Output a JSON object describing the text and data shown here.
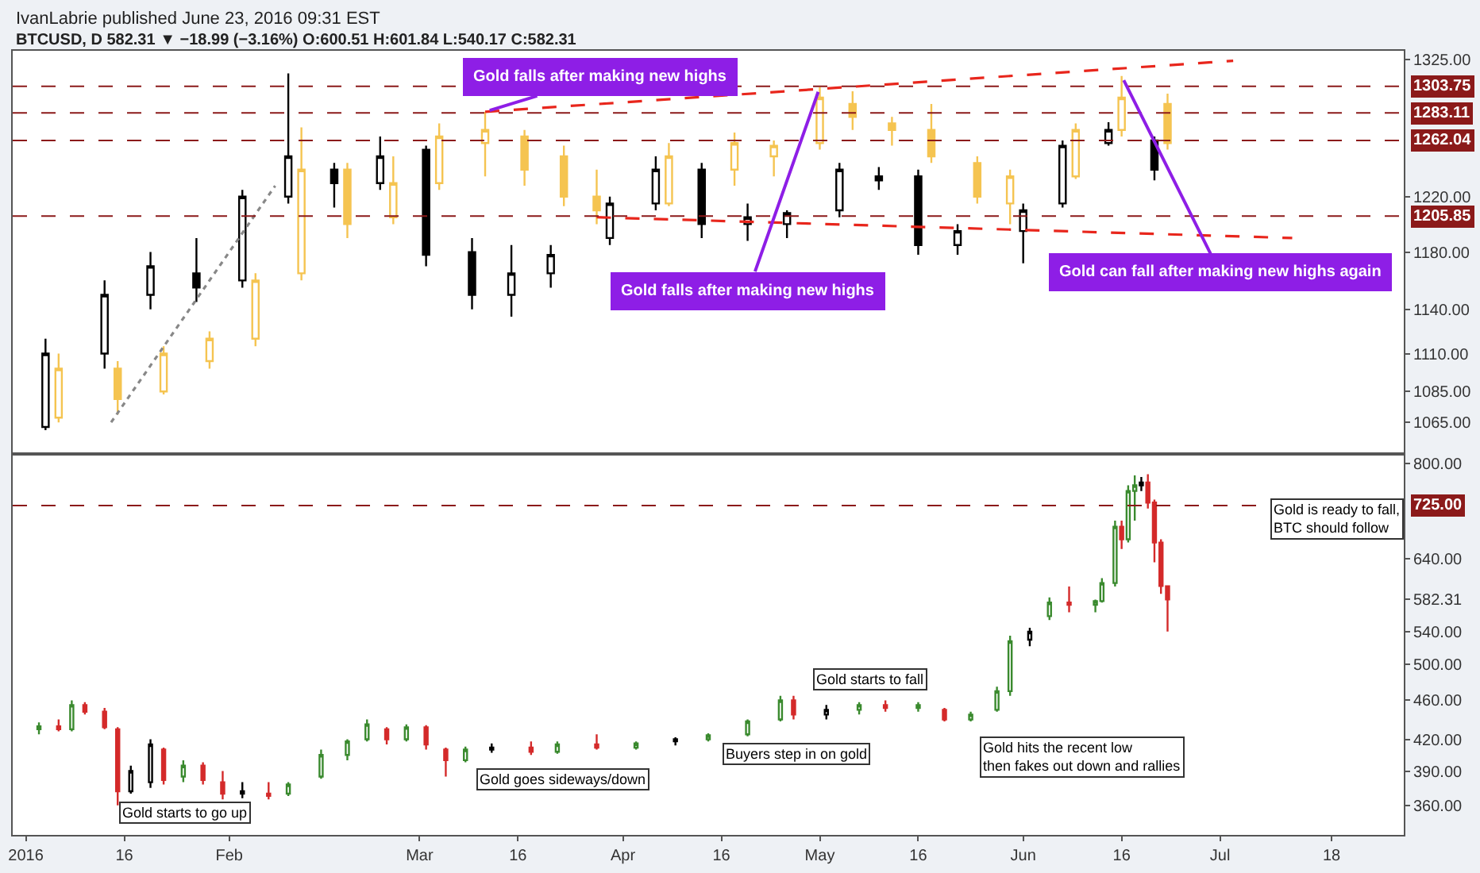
{
  "chart_data": [
    {
      "type": "candlestick",
      "title": "IvanLabrie published June 23, 2016 09:31 EST",
      "subtitle": "BTCUSD, D 582.31 ▼ −18.99 (−3.16%) O:600.51 H:601.84 L:540.17 C:582.31",
      "log": "y",
      "tick_labels": "y",
      "xlim": [
        "2015-12-30",
        "2016-07-29"
      ],
      "ylim": [
        1045,
        1332
      ],
      "yticks": [
        {
          "value": 1065,
          "label": "1065.00"
        },
        {
          "value": 1085,
          "label": "1085.00"
        },
        {
          "value": 1110,
          "label": "1110.00"
        },
        {
          "value": 1140,
          "label": "1140.00"
        },
        {
          "value": 1180,
          "label": "1180.00"
        },
        {
          "value": 1220,
          "label": "1220.00"
        },
        {
          "value": 1325,
          "label": "1325.00"
        }
      ],
      "series": [
        {
          "color": "#f5c451",
          "x": [
            "2016-01-06",
            "2016-01-15",
            "2016-01-22",
            "2016-01-29",
            "2016-02-05",
            "2016-02-12",
            "2016-02-19",
            "2016-02-26",
            "2016-03-04",
            "2016-03-11",
            "2016-03-17",
            "2016-03-23",
            "2016-03-28",
            "2016-04-08",
            "2016-04-18",
            "2016-04-24",
            "2016-05-01",
            "2016-05-06",
            "2016-05-12",
            "2016-05-18",
            "2016-05-25",
            "2016-05-30",
            "2016-06-09",
            "2016-06-16",
            "2016-06-23"
          ],
          "ohlc": [
            [
              1068,
              1110,
              1065,
              1100
            ],
            [
              1100,
              1105,
              1070,
              1080
            ],
            [
              1085,
              1115,
              1083,
              1110
            ],
            [
              1105,
              1125,
              1100,
              1120
            ],
            [
              1120,
              1165,
              1115,
              1160
            ],
            [
              1165,
              1272,
              1160,
              1240
            ],
            [
              1240,
              1245,
              1190,
              1200
            ],
            [
              1205,
              1250,
              1200,
              1230
            ],
            [
              1230,
              1275,
              1225,
              1265
            ],
            [
              1260,
              1284,
              1235,
              1270
            ],
            [
              1265,
              1270,
              1228,
              1240
            ],
            [
              1250,
              1258,
              1213,
              1220
            ],
            [
              1220,
              1240,
              1200,
              1210
            ],
            [
              1215,
              1260,
              1213,
              1250
            ],
            [
              1240,
              1268,
              1228,
              1260
            ],
            [
              1250,
              1262,
              1235,
              1258
            ],
            [
              1260,
              1303,
              1255,
              1295
            ],
            [
              1290,
              1300,
              1270,
              1280
            ],
            [
              1275,
              1280,
              1258,
              1270
            ],
            [
              1270,
              1290,
              1245,
              1250
            ],
            [
              1245,
              1250,
              1215,
              1220
            ],
            [
              1215,
              1240,
              1200,
              1235
            ],
            [
              1235,
              1275,
              1233,
              1270
            ],
            [
              1270,
              1312,
              1265,
              1295
            ],
            [
              1290,
              1298,
              1255,
              1260
            ]
          ]
        },
        {
          "color": "#000000",
          "x": [
            "2016-01-04",
            "2016-01-13",
            "2016-01-20",
            "2016-01-27",
            "2016-02-03",
            "2016-02-10",
            "2016-02-17",
            "2016-02-24",
            "2016-03-02",
            "2016-03-09",
            "2016-03-15",
            "2016-03-21",
            "2016-03-30",
            "2016-04-06",
            "2016-04-13",
            "2016-04-20",
            "2016-04-26",
            "2016-05-04",
            "2016-05-10",
            "2016-05-16",
            "2016-05-22",
            "2016-06-01",
            "2016-06-07",
            "2016-06-14",
            "2016-06-21"
          ],
          "ohlc": [
            [
              1062,
              1120,
              1060,
              1110
            ],
            [
              1110,
              1160,
              1100,
              1150
            ],
            [
              1150,
              1180,
              1140,
              1170
            ],
            [
              1165,
              1190,
              1145,
              1155
            ],
            [
              1160,
              1225,
              1155,
              1220
            ],
            [
              1220,
              1314,
              1215,
              1250
            ],
            [
              1240,
              1245,
              1212,
              1230
            ],
            [
              1230,
              1265,
              1225,
              1250
            ],
            [
              1255,
              1258,
              1170,
              1178
            ],
            [
              1180,
              1190,
              1140,
              1150
            ],
            [
              1150,
              1185,
              1135,
              1165
            ],
            [
              1165,
              1185,
              1155,
              1178
            ],
            [
              1190,
              1220,
              1185,
              1215
            ],
            [
              1215,
              1250,
              1210,
              1240
            ],
            [
              1240,
              1245,
              1190,
              1200
            ],
            [
              1200,
              1215,
              1188,
              1205
            ],
            [
              1200,
              1210,
              1190,
              1208
            ],
            [
              1210,
              1245,
              1205,
              1240
            ],
            [
              1235,
              1242,
              1225,
              1232
            ],
            [
              1235,
              1240,
              1178,
              1185
            ],
            [
              1185,
              1200,
              1178,
              1195
            ],
            [
              1195,
              1215,
              1172,
              1210
            ],
            [
              1215,
              1262,
              1212,
              1258
            ],
            [
              1260,
              1276,
              1258,
              1270
            ],
            [
              1262,
              1265,
              1232,
              1240
            ]
          ]
        },
        {
          "type": "line",
          "color": "#e8261c",
          "line_style": "dashed",
          "x": [
            "2016-03-11",
            "2016-07-03"
          ],
          "values": [
            1284,
            1324
          ]
        },
        {
          "type": "line",
          "color": "#e8261c",
          "line_style": "dashed",
          "x": [
            "2016-03-28",
            "2016-07-12"
          ],
          "values": [
            1205,
            1190
          ]
        },
        {
          "type": "line",
          "color": "#888888",
          "line_style": "dotted",
          "x": [
            "2016-01-14",
            "2016-02-08"
          ],
          "values": [
            1065,
            1228
          ]
        }
      ],
      "ref_lines": [
        {
          "axis": "y",
          "value": 1303.75,
          "label": "1303.75",
          "color": "#8b1a1a",
          "line_style": "dashed"
        },
        {
          "axis": "y",
          "value": 1283.11,
          "label": "1283.11",
          "color": "#8b1a1a",
          "line_style": "dashed"
        },
        {
          "axis": "y",
          "value": 1262.04,
          "label": "1262.04",
          "color": "#8b1a1a",
          "line_style": "dashed"
        },
        {
          "axis": "y",
          "value": 1205.85,
          "label": "1205.85",
          "color": "#8b1a1a",
          "line_style": "dashed"
        }
      ],
      "annotations": [
        {
          "text": "Gold falls after making new highs",
          "x": "2016-03-11",
          "y": 1284
        },
        {
          "text": "Gold falls after making new highs",
          "x": "2016-05-01",
          "y": 1303
        },
        {
          "text": "Gold can fall after making new highs again",
          "x": "2016-06-16",
          "y": 1312
        }
      ]
    },
    {
      "type": "candlestick",
      "log": "y",
      "xlim": [
        "2015-12-30",
        "2016-07-29"
      ],
      "ylim": [
        336,
        818
      ],
      "xticks": [
        {
          "value": "2016-01-01",
          "label": "2016"
        },
        {
          "value": "2016-01-16",
          "label": "16"
        },
        {
          "value": "2016-02-01",
          "label": "Feb"
        },
        {
          "value": "2016-03-01",
          "label": "Mar"
        },
        {
          "value": "2016-03-16",
          "label": "16"
        },
        {
          "value": "2016-04-01",
          "label": "Apr"
        },
        {
          "value": "2016-04-16",
          "label": "16"
        },
        {
          "value": "2016-05-01",
          "label": "May"
        },
        {
          "value": "2016-05-16",
          "label": "16"
        },
        {
          "value": "2016-06-01",
          "label": "Jun"
        },
        {
          "value": "2016-06-16",
          "label": "16"
        },
        {
          "value": "2016-07-01",
          "label": "Jul"
        },
        {
          "value": "2016-07-18",
          "label": "18"
        }
      ],
      "yticks": [
        {
          "value": 360,
          "label": "360.00"
        },
        {
          "value": 390,
          "label": "390.00"
        },
        {
          "value": 420,
          "label": "420.00"
        },
        {
          "value": 460,
          "label": "460.00"
        },
        {
          "value": 500,
          "label": "500.00"
        },
        {
          "value": 540,
          "label": "540.00"
        },
        {
          "value": 582.31,
          "label": "582.31"
        },
        {
          "value": 640,
          "label": "640.00"
        },
        {
          "value": 800,
          "label": "800.00"
        }
      ],
      "series": [
        {
          "x": [
            "2016-01-03",
            "2016-01-06",
            "2016-01-08",
            "2016-01-10",
            "2016-01-13",
            "2016-01-15",
            "2016-01-17",
            "2016-01-20",
            "2016-01-22",
            "2016-01-25",
            "2016-01-28",
            "2016-01-31",
            "2016-02-03",
            "2016-02-07",
            "2016-02-10",
            "2016-02-15",
            "2016-02-19",
            "2016-02-22",
            "2016-02-25",
            "2016-02-28",
            "2016-03-02",
            "2016-03-05",
            "2016-03-08",
            "2016-03-12",
            "2016-03-18",
            "2016-03-22",
            "2016-03-28",
            "2016-04-03",
            "2016-04-09",
            "2016-04-14",
            "2016-04-20",
            "2016-04-25",
            "2016-04-27",
            "2016-05-02",
            "2016-05-07",
            "2016-05-11",
            "2016-05-16",
            "2016-05-20",
            "2016-05-24",
            "2016-05-28",
            "2016-05-30",
            "2016-06-02",
            "2016-06-05",
            "2016-06-08",
            "2016-06-12",
            "2016-06-13",
            "2016-06-15",
            "2016-06-16",
            "2016-06-17",
            "2016-06-18",
            "2016-06-19",
            "2016-06-20",
            "2016-06-21",
            "2016-06-22",
            "2016-06-23"
          ],
          "ohlc": [
            [
              430,
              437,
              425,
              433
            ],
            [
              433,
              440,
              428,
              430
            ],
            [
              430,
              460,
              428,
              455
            ],
            [
              455,
              458,
              445,
              448
            ],
            [
              448,
              452,
              430,
              432
            ],
            [
              430,
              432,
              360,
              372
            ],
            [
              372,
              395,
              370,
              390
            ],
            [
              380,
              420,
              375,
              415
            ],
            [
              410,
              412,
              378,
              382
            ],
            [
              385,
              400,
              380,
              395
            ],
            [
              395,
              398,
              378,
              382
            ],
            [
              380,
              390,
              365,
              370
            ],
            [
              372,
              380,
              366,
              370
            ],
            [
              370,
              380,
              365,
              368
            ],
            [
              370,
              380,
              368,
              378
            ],
            [
              385,
              410,
              383,
              405
            ],
            [
              405,
              420,
              400,
              418
            ],
            [
              420,
              440,
              418,
              435
            ],
            [
              430,
              432,
              415,
              420
            ],
            [
              420,
              435,
              418,
              432
            ],
            [
              432,
              434,
              410,
              415
            ],
            [
              410,
              412,
              385,
              400
            ],
            [
              400,
              413,
              398,
              410
            ],
            [
              410,
              416,
              407,
              412
            ],
            [
              412,
              418,
              405,
              408
            ],
            [
              408,
              418,
              406,
              415
            ],
            [
              415,
              425,
              410,
              412
            ],
            [
              412,
              418,
              410,
              416
            ],
            [
              418,
              422,
              414,
              420
            ],
            [
              420,
              426,
              418,
              424
            ],
            [
              425,
              440,
              423,
              438
            ],
            [
              440,
              465,
              438,
              460
            ],
            [
              460,
              465,
              440,
              445
            ],
            [
              445,
              455,
              440,
              450
            ],
            [
              450,
              458,
              445,
              455
            ],
            [
              455,
              460,
              448,
              452
            ],
            [
              452,
              458,
              448,
              455
            ],
            [
              450,
              452,
              438,
              440
            ],
            [
              440,
              448,
              438,
              445
            ],
            [
              450,
              475,
              448,
              470
            ],
            [
              470,
              535,
              465,
              528
            ],
            [
              530,
              545,
              522,
              540
            ],
            [
              560,
              585,
              555,
              578
            ],
            [
              578,
              600,
              565,
              575
            ],
            [
              575,
              582,
              565,
              580
            ],
            [
              580,
              612,
              578,
              605
            ],
            [
              605,
              700,
              600,
              690
            ],
            [
              690,
              700,
              655,
              670
            ],
            [
              670,
              760,
              665,
              750
            ],
            [
              750,
              778,
              700,
              760
            ],
            [
              760,
              775,
              750,
              765
            ],
            [
              765,
              780,
              720,
              730
            ],
            [
              730,
              735,
              635,
              665
            ],
            [
              665,
              670,
              590,
              601
            ],
            [
              600.51,
              601.84,
              540.17,
              582.31
            ]
          ],
          "colors": [
            "#3a8a2e",
            "#d42a2a",
            "#3a8a2e",
            "#d42a2a",
            "#d42a2a",
            "#d42a2a",
            "#000000",
            "#000000",
            "#d42a2a",
            "#3a8a2e",
            "#d42a2a",
            "#d42a2a",
            "#000000",
            "#d42a2a",
            "#3a8a2e",
            "#3a8a2e",
            "#3a8a2e",
            "#3a8a2e",
            "#d42a2a",
            "#3a8a2e",
            "#d42a2a",
            "#d42a2a",
            "#3a8a2e",
            "#000000",
            "#d42a2a",
            "#3a8a2e",
            "#d42a2a",
            "#3a8a2e",
            "#000000",
            "#3a8a2e",
            "#3a8a2e",
            "#3a8a2e",
            "#d42a2a",
            "#000000",
            "#3a8a2e",
            "#d42a2a",
            "#3a8a2e",
            "#d42a2a",
            "#3a8a2e",
            "#3a8a2e",
            "#3a8a2e",
            "#000000",
            "#3a8a2e",
            "#d42a2a",
            "#3a8a2e",
            "#3a8a2e",
            "#3a8a2e",
            "#d42a2a",
            "#3a8a2e",
            "#3a8a2e",
            "#000000",
            "#d42a2a",
            "#d42a2a",
            "#d42a2a",
            "#d42a2a"
          ]
        }
      ],
      "ref_lines": [
        {
          "axis": "y",
          "value": 725,
          "label": "725.00",
          "color": "#8b1a1a",
          "line_style": "dashed"
        }
      ],
      "annotations": [
        "Gold starts to go up",
        "Gold goes sideways/down",
        "Buyers step in on gold",
        "Gold starts to fall",
        "Gold hits the recent low\nthen fakes out down and rallies",
        "Gold is ready to fall, BTC should follow"
      ]
    }
  ]
}
